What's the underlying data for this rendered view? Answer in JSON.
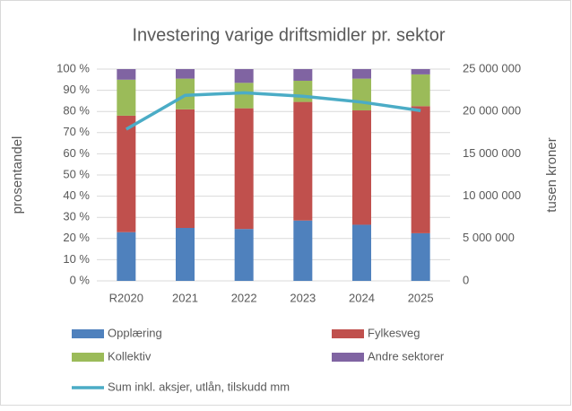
{
  "chart_data": {
    "type": "stacked-bar-line",
    "title": "Investering varige driftsmidler pr. sektor",
    "y_label": "prosentandel",
    "y2_label": "tusen kroner",
    "categories": [
      "R2020",
      "2021",
      "2022",
      "2023",
      "2024",
      "2025"
    ],
    "series": [
      {
        "name": "Opplæring",
        "color": "#4f81bd",
        "values": [
          23,
          25,
          24.5,
          28.5,
          26.5,
          22.5
        ]
      },
      {
        "name": "Fylkesveg",
        "color": "#c0504d",
        "values": [
          55,
          56,
          57,
          56,
          54,
          60
        ]
      },
      {
        "name": "Kollektiv",
        "color": "#9bbb59",
        "values": [
          17,
          14.5,
          12,
          10,
          15,
          15
        ]
      },
      {
        "name": "Andre sektorer",
        "color": "#8064a2",
        "values": [
          5,
          4.5,
          6.5,
          5.5,
          4.5,
          2.5
        ]
      },
      {
        "name": "Sum inkl. aksjer, utlån, tilskudd mm",
        "color": "#4bacc6",
        "axis": "y2",
        "type": "line",
        "values": [
          17900000,
          21900000,
          22200000,
          21800000,
          21100000,
          20100000
        ]
      }
    ],
    "ylim": [
      0,
      100
    ],
    "yticks": [
      {
        "value": 0,
        "label": "0 %"
      },
      {
        "value": 10,
        "label": "10 %"
      },
      {
        "value": 20,
        "label": "20 %"
      },
      {
        "value": 30,
        "label": "30 %"
      },
      {
        "value": 40,
        "label": "40 %"
      },
      {
        "value": 50,
        "label": "50 %"
      },
      {
        "value": 60,
        "label": "60 %"
      },
      {
        "value": 70,
        "label": "70 %"
      },
      {
        "value": 80,
        "label": "80 %"
      },
      {
        "value": 90,
        "label": "90 %"
      },
      {
        "value": 100,
        "label": "100 %"
      }
    ],
    "y2lim": [
      0,
      25000000
    ],
    "y2ticks": [
      0,
      {
        "value": 5000000,
        "label": "5 000 000"
      },
      {
        "value": 10000000,
        "label": "10 000 000"
      },
      {
        "value": 15000000,
        "label": "15 000 000"
      },
      {
        "value": 20000000,
        "label": "20 000 000"
      },
      {
        "value": 25000000,
        "label": "25 000 000"
      }
    ],
    "grid": true,
    "legend": "bottom"
  }
}
